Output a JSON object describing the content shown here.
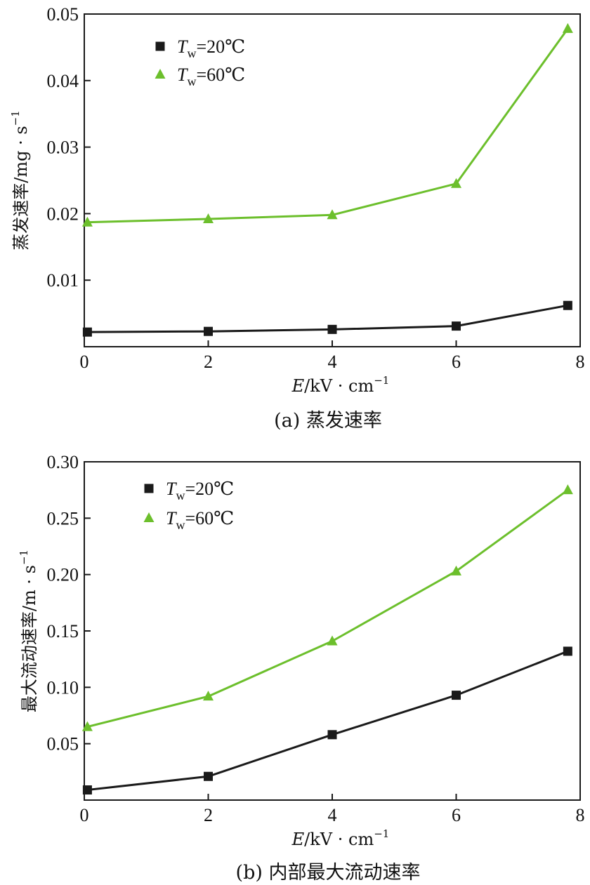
{
  "chart_data": [
    {
      "type": "line",
      "caption": "(a) 蒸发速率",
      "xlabel": "E/kV · cm⁻¹",
      "xlabel_var": "E",
      "xlabel_unit": "/kV · cm",
      "xlabel_sup": "−1",
      "ylabel": "蒸发速率/mg · s⁻¹",
      "ylabel_main": "蒸发速率/mg · s",
      "ylabel_sup": "−1",
      "xlim": [
        0,
        8
      ],
      "ylim": [
        0,
        0.05
      ],
      "xticks": [
        0,
        2,
        4,
        6,
        8
      ],
      "xtick_labels": [
        "0",
        "2",
        "4",
        "6",
        "8"
      ],
      "yticks": [
        0.01,
        0.02,
        0.03,
        0.04,
        0.05
      ],
      "ytick_labels": [
        "0.01",
        "0.02",
        "0.03",
        "0.04",
        "0.05"
      ],
      "legend_position": "top-left",
      "series": [
        {
          "name": "Tw=20℃",
          "legend_var": "T",
          "legend_sub": "w",
          "legend_rest": "=20℃",
          "marker": "square",
          "color": "#1a1a1a",
          "x": [
            0.05,
            2,
            4,
            6,
            7.8
          ],
          "y": [
            0.0022,
            0.0023,
            0.0026,
            0.0031,
            0.0062
          ]
        },
        {
          "name": "Tw=60℃",
          "legend_var": "T",
          "legend_sub": "w",
          "legend_rest": "=60℃",
          "marker": "triangle",
          "color": "#6cbf2c",
          "x": [
            0.05,
            2,
            4,
            6,
            7.8
          ],
          "y": [
            0.0187,
            0.0192,
            0.0198,
            0.0245,
            0.0478
          ]
        }
      ]
    },
    {
      "type": "line",
      "caption": "(b) 内部最大流动速率",
      "xlabel": "E/kV · cm⁻¹",
      "xlabel_var": "E",
      "xlabel_unit": "/kV · cm",
      "xlabel_sup": "−1",
      "ylabel": "最大流动速率/m · s⁻¹",
      "ylabel_main": "最大流动速率/m · s",
      "ylabel_sup": "−1",
      "xlim": [
        0,
        8
      ],
      "ylim": [
        0,
        0.3
      ],
      "xticks": [
        0,
        2,
        4,
        6,
        8
      ],
      "xtick_labels": [
        "0",
        "2",
        "4",
        "6",
        "8"
      ],
      "yticks": [
        0.05,
        0.1,
        0.15,
        0.2,
        0.25,
        0.3
      ],
      "ytick_labels": [
        "0.05",
        "0.10",
        "0.15",
        "0.20",
        "0.25",
        "0.30"
      ],
      "legend_position": "top-left",
      "series": [
        {
          "name": "Tw=20℃",
          "legend_var": "T",
          "legend_sub": "w",
          "legend_rest": "=20℃",
          "marker": "square",
          "color": "#1a1a1a",
          "x": [
            0.05,
            2,
            4,
            6,
            7.8
          ],
          "y": [
            0.009,
            0.021,
            0.058,
            0.093,
            0.132
          ]
        },
        {
          "name": "Tw=60℃",
          "legend_var": "T",
          "legend_sub": "w",
          "legend_rest": "=60℃",
          "marker": "triangle",
          "color": "#6cbf2c",
          "x": [
            0.05,
            2,
            4,
            6,
            7.8
          ],
          "y": [
            0.065,
            0.092,
            0.141,
            0.203,
            0.275
          ]
        }
      ]
    }
  ]
}
